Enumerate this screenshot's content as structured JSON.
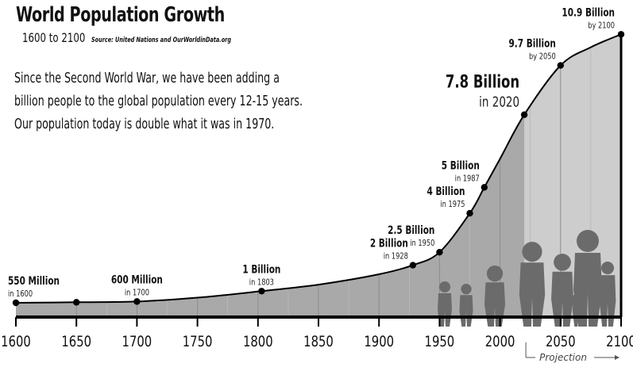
{
  "header": {
    "title": "World Population Growth",
    "subtitle": "1600 to 2100",
    "source": "Source: United Nations and OurWorldinData.org"
  },
  "intro_lines": [
    "Since the Second World War, we have been adding a",
    "billion people to the global population every 12-15 years.",
    "Our population today is double what it was in 1970."
  ],
  "chart_data": {
    "type": "area",
    "title": "World Population Growth",
    "subtitle": "1600 to 2100",
    "xlabel": "",
    "ylabel": "",
    "x_ticks": [
      1600,
      1650,
      1700,
      1750,
      1800,
      1850,
      1900,
      1950,
      2000,
      2050,
      2100
    ],
    "xlim": [
      1600,
      2100
    ],
    "ylim": [
      0,
      11
    ],
    "y_unit": "billion",
    "grid": false,
    "projection_label": "Projection",
    "projection_start": 2020,
    "curve": [
      {
        "x": 1600,
        "y": 0.55
      },
      {
        "x": 1650,
        "y": 0.57
      },
      {
        "x": 1700,
        "y": 0.6
      },
      {
        "x": 1750,
        "y": 0.75
      },
      {
        "x": 1803,
        "y": 1.0
      },
      {
        "x": 1850,
        "y": 1.25
      },
      {
        "x": 1900,
        "y": 1.65
      },
      {
        "x": 1928,
        "y": 2.0
      },
      {
        "x": 1950,
        "y": 2.5
      },
      {
        "x": 1975,
        "y": 4.0
      },
      {
        "x": 1987,
        "y": 5.0
      },
      {
        "x": 2000,
        "y": 6.1
      },
      {
        "x": 2020,
        "y": 7.8
      },
      {
        "x": 2050,
        "y": 9.7
      },
      {
        "x": 2075,
        "y": 10.4
      },
      {
        "x": 2100,
        "y": 10.9
      }
    ],
    "points": [
      {
        "x": 1600,
        "y": 0.55,
        "value": "550 Million",
        "when": "in 1600",
        "style": "small",
        "align": "start"
      },
      {
        "x": 1650,
        "y": 0.57,
        "value": "",
        "when": "",
        "style": "none",
        "align": "start"
      },
      {
        "x": 1700,
        "y": 0.6,
        "value": "600 Million",
        "when": "in 1700",
        "style": "small",
        "align": "middle"
      },
      {
        "x": 1803,
        "y": 1.0,
        "value": "1 Billion",
        "when": "in 1803",
        "style": "small",
        "align": "middle"
      },
      {
        "x": 1928,
        "y": 2.0,
        "value": "2 Billion",
        "when": "in 1928",
        "style": "small",
        "align": "end"
      },
      {
        "x": 1950,
        "y": 2.5,
        "value": "2.5 Billion",
        "when": "in 1950",
        "style": "small",
        "align": "end"
      },
      {
        "x": 1975,
        "y": 4.0,
        "value": "4 Billion",
        "when": "in 1975",
        "style": "small",
        "align": "end"
      },
      {
        "x": 1987,
        "y": 5.0,
        "value": "5 Billion",
        "when": "in 1987",
        "style": "small",
        "align": "end"
      },
      {
        "x": 2020,
        "y": 7.8,
        "value": "7.8 Billion",
        "when": "in 2020",
        "style": "big",
        "align": "end"
      },
      {
        "x": 2050,
        "y": 9.7,
        "value": "9.7 Billion",
        "when": "by 2050",
        "style": "small",
        "align": "end"
      },
      {
        "x": 2100,
        "y": 10.9,
        "value": "10.9 Billion",
        "when": "by 2100",
        "style": "small",
        "align": "end"
      }
    ],
    "colors": {
      "historic_fill": "#a9a9a9",
      "projection_fill": "#cdcdcd",
      "line": "#000000",
      "silhouette": "#6b6b6b"
    }
  }
}
